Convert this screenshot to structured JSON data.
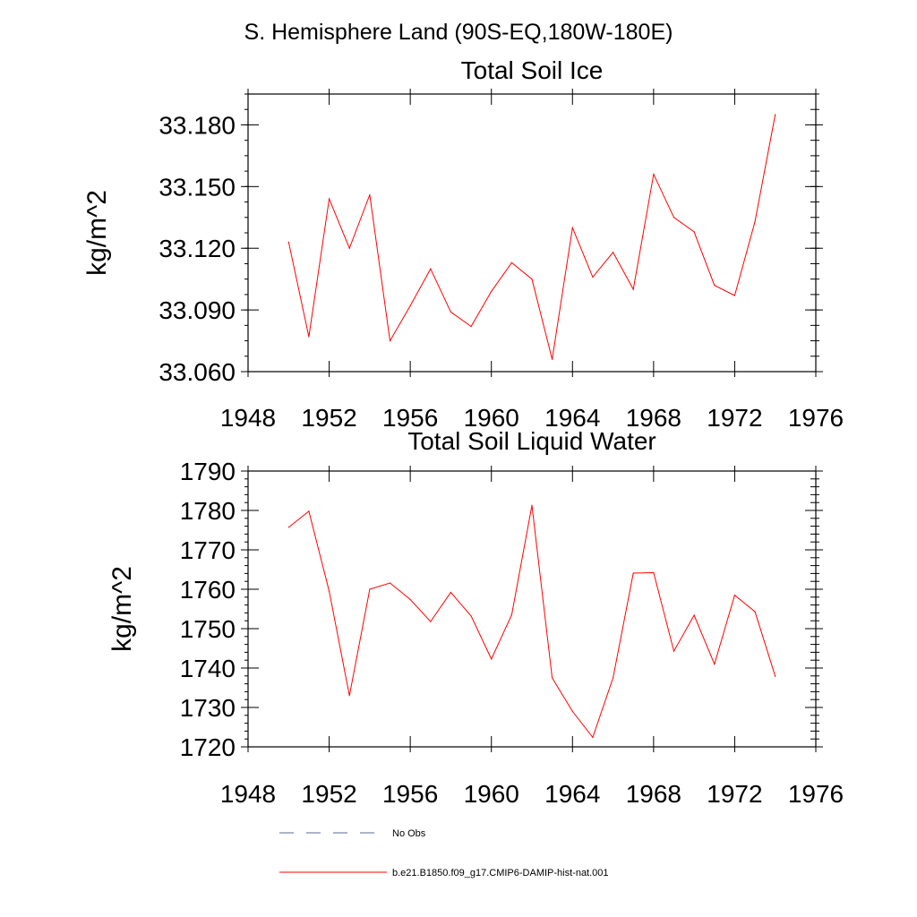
{
  "main_title": "S. Hemisphere Land (90S-EQ,180W-180E)",
  "colors": {
    "series": "#ff0000",
    "no_obs": "#5a6a9a",
    "axis": "#000000"
  },
  "chart_data": [
    {
      "type": "line",
      "title": "Total Soil Ice",
      "ylabel": "kg/m^2",
      "xlabel": "",
      "xlim": [
        1948,
        1976
      ],
      "ylim": [
        33.06,
        33.195
      ],
      "x_ticks": [
        1948,
        1952,
        1956,
        1960,
        1964,
        1968,
        1972,
        1976
      ],
      "y_ticks": [
        "33.060",
        "33.090",
        "33.120",
        "33.150",
        "33.180"
      ],
      "grid": false,
      "series": [
        {
          "name": "b.e21.B1850.f09_g17.CMIP6-DAMIP-hist-nat.001",
          "x": [
            1950,
            1951,
            1952,
            1953,
            1954,
            1955,
            1956,
            1957,
            1958,
            1959,
            1960,
            1961,
            1962,
            1963,
            1964,
            1965,
            1966,
            1967,
            1968,
            1969,
            1970,
            1971,
            1972,
            1973,
            1974
          ],
          "values": [
            33.123,
            33.077,
            33.144,
            33.12,
            33.146,
            33.075,
            33.092,
            33.11,
            33.089,
            33.082,
            33.099,
            33.113,
            33.105,
            33.066,
            33.13,
            33.106,
            33.118,
            33.1,
            33.156,
            33.135,
            33.128,
            33.102,
            33.097,
            33.133,
            33.185
          ]
        }
      ]
    },
    {
      "type": "line",
      "title": "Total Soil Liquid Water",
      "ylabel": "kg/m^2",
      "xlabel": "",
      "xlim": [
        1948,
        1976
      ],
      "ylim": [
        1720,
        1790
      ],
      "x_ticks": [
        1948,
        1952,
        1956,
        1960,
        1964,
        1968,
        1972,
        1976
      ],
      "y_ticks": [
        "1720",
        "1730",
        "1740",
        "1750",
        "1760",
        "1770",
        "1780",
        "1790"
      ],
      "grid": false,
      "series": [
        {
          "name": "b.e21.B1850.f09_g17.CMIP6-DAMIP-hist-nat.001",
          "x": [
            1950,
            1951,
            1952,
            1953,
            1954,
            1955,
            1956,
            1957,
            1958,
            1959,
            1960,
            1961,
            1962,
            1963,
            1964,
            1965,
            1966,
            1967,
            1968,
            1969,
            1970,
            1971,
            1972,
            1973,
            1974
          ],
          "values": [
            1775.7,
            1779.8,
            1759.5,
            1733.0,
            1760.0,
            1761.6,
            1757.4,
            1751.8,
            1759.2,
            1753.2,
            1742.3,
            1753.5,
            1781.3,
            1737.5,
            1729.0,
            1722.4,
            1737.5,
            1764.1,
            1764.2,
            1744.3,
            1753.4,
            1741.0,
            1758.5,
            1754.3,
            1737.9
          ]
        }
      ]
    }
  ],
  "legend": {
    "items": [
      {
        "label": "No Obs",
        "style": "dashed"
      },
      {
        "label": "b.e21.B1850.f09_g17.CMIP6-DAMIP-hist-nat.001",
        "style": "solid"
      }
    ]
  }
}
